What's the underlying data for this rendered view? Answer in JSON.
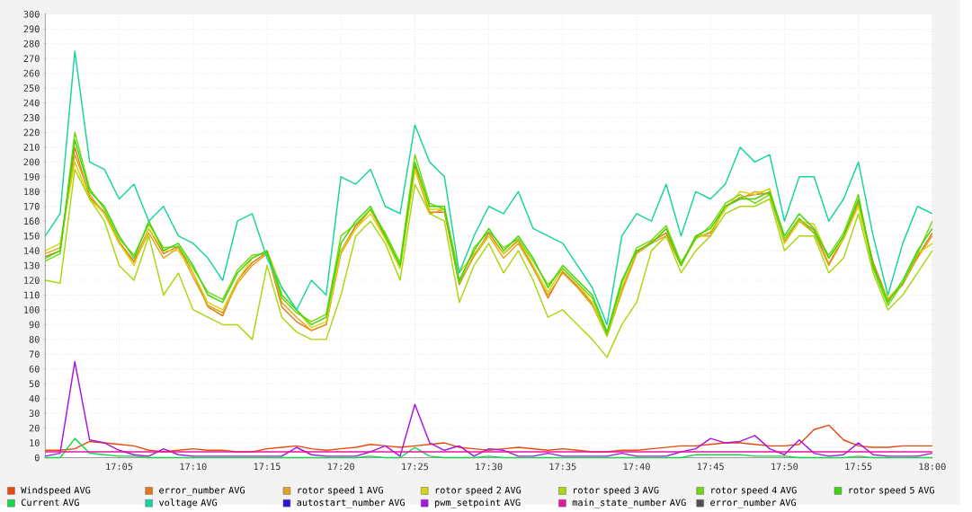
{
  "chart_data": {
    "type": "line",
    "line_style": "solid",
    "grid": true,
    "legend": "bottom",
    "xlim": [
      17.0,
      18.0
    ],
    "ylim": [
      0,
      300
    ],
    "xticks": [
      {
        "value": 17.0833,
        "label": "17:05"
      },
      {
        "value": 17.1667,
        "label": "17:10"
      },
      {
        "value": 17.25,
        "label": "17:15"
      },
      {
        "value": 17.3333,
        "label": "17:20"
      },
      {
        "value": 17.4167,
        "label": "17:25"
      },
      {
        "value": 17.5,
        "label": "17:30"
      },
      {
        "value": 17.5833,
        "label": "17:35"
      },
      {
        "value": 17.6667,
        "label": "17:40"
      },
      {
        "value": 17.75,
        "label": "17:45"
      },
      {
        "value": 17.8333,
        "label": "17:50"
      },
      {
        "value": 17.9167,
        "label": "17:55"
      },
      {
        "value": 18.0,
        "label": "18:00"
      }
    ],
    "yticks": [
      0,
      10,
      20,
      30,
      40,
      50,
      60,
      70,
      80,
      90,
      100,
      110,
      120,
      130,
      140,
      150,
      160,
      170,
      180,
      190,
      200,
      210,
      220,
      230,
      240,
      250,
      260,
      270,
      280,
      290,
      300
    ],
    "x": [
      17.0,
      17.0167,
      17.0333,
      17.05,
      17.0667,
      17.0833,
      17.1,
      17.1167,
      17.1333,
      17.15,
      17.1667,
      17.1833,
      17.2,
      17.2167,
      17.2333,
      17.25,
      17.2667,
      17.2833,
      17.3,
      17.3167,
      17.3333,
      17.35,
      17.3667,
      17.3833,
      17.4,
      17.4167,
      17.4333,
      17.45,
      17.4667,
      17.4833,
      17.5,
      17.5167,
      17.5333,
      17.55,
      17.5667,
      17.5833,
      17.6,
      17.6167,
      17.6333,
      17.65,
      17.6667,
      17.6833,
      17.7,
      17.7167,
      17.7333,
      17.75,
      17.7667,
      17.7833,
      17.8,
      17.8167,
      17.8333,
      17.85,
      17.8667,
      17.8833,
      17.9,
      17.9167,
      17.9333,
      17.95,
      17.9667,
      17.9833,
      18.0
    ],
    "series": [
      {
        "name": "Windspeed AVG",
        "color": "#e84a0c",
        "values": [
          5,
          5,
          6,
          11,
          10,
          9,
          8,
          5,
          4,
          5,
          6,
          5,
          5,
          4,
          4,
          6,
          7,
          8,
          6,
          5,
          6,
          7,
          9,
          8,
          7,
          8,
          9,
          10,
          7,
          6,
          5,
          6,
          7,
          6,
          5,
          6,
          5,
          4,
          4,
          5,
          5,
          6,
          7,
          8,
          8,
          9,
          10,
          10,
          9,
          8,
          8,
          9,
          19,
          22,
          12,
          8,
          7,
          7,
          8,
          8,
          8
        ]
      },
      {
        "name": "error_number AVG",
        "color": "#e0781a",
        "values": [
          136,
          140,
          210,
          176,
          166,
          146,
          133,
          155,
          138,
          143,
          125,
          102,
          96,
          120,
          132,
          139,
          102,
          92,
          86,
          90,
          140,
          157,
          168,
          149,
          129,
          198,
          166,
          166,
          117,
          137,
          152,
          138,
          147,
          129,
          108,
          126,
          116,
          104,
          84,
          114,
          139,
          146,
          152,
          131,
          149,
          152,
          170,
          176,
          178,
          179,
          146,
          161,
          154,
          131,
          149,
          173,
          132,
          107,
          117,
          136,
          152
        ]
      },
      {
        "name": "rotor speed 1 AVG",
        "color": "#e0a51c",
        "values": [
          138,
          142,
          205,
          178,
          165,
          145,
          132,
          152,
          135,
          142,
          122,
          103,
          98,
          118,
          130,
          138,
          105,
          95,
          86,
          90,
          138,
          155,
          168,
          150,
          128,
          195,
          165,
          168,
          118,
          136,
          150,
          135,
          145,
          128,
          110,
          125,
          115,
          103,
          82,
          112,
          138,
          145,
          150,
          130,
          150,
          150,
          170,
          175,
          180,
          178,
          145,
          160,
          152,
          130,
          148,
          172,
          130,
          106,
          118,
          135,
          150
        ]
      },
      {
        "name": "rotor speed 2 AVG",
        "color": "#d8d410",
        "values": [
          140,
          145,
          200,
          175,
          165,
          145,
          130,
          155,
          140,
          140,
          125,
          105,
          100,
          120,
          135,
          140,
          115,
          100,
          88,
          92,
          140,
          155,
          165,
          148,
          128,
          195,
          168,
          168,
          125,
          138,
          150,
          138,
          148,
          130,
          112,
          128,
          118,
          105,
          82,
          115,
          140,
          145,
          155,
          130,
          148,
          153,
          168,
          180,
          178,
          182,
          145,
          160,
          158,
          135,
          148,
          170,
          128,
          108,
          118,
          138,
          145
        ]
      },
      {
        "name": "rotor speed 3 AVG",
        "color": "#a8d80e",
        "values": [
          120,
          118,
          195,
          175,
          160,
          130,
          120,
          150,
          110,
          125,
          100,
          95,
          90,
          90,
          80,
          130,
          95,
          85,
          80,
          80,
          110,
          150,
          160,
          145,
          120,
          185,
          165,
          160,
          105,
          130,
          145,
          125,
          140,
          120,
          95,
          100,
          90,
          80,
          68,
          90,
          105,
          140,
          150,
          125,
          140,
          150,
          165,
          170,
          170,
          175,
          140,
          150,
          150,
          125,
          135,
          165,
          125,
          100,
          110,
          125,
          140
        ]
      },
      {
        "name": "rotor speed 4 AVG",
        "color": "#72d80e",
        "values": [
          133,
          138,
          220,
          182,
          168,
          148,
          137,
          158,
          142,
          143,
          128,
          112,
          107,
          127,
          137,
          138,
          108,
          98,
          92,
          97,
          150,
          158,
          168,
          152,
          132,
          205,
          172,
          168,
          118,
          142,
          153,
          142,
          148,
          133,
          117,
          128,
          118,
          108,
          83,
          118,
          142,
          147,
          157,
          132,
          148,
          157,
          172,
          178,
          172,
          178,
          148,
          162,
          152,
          137,
          152,
          178,
          128,
          103,
          118,
          138,
          160
        ]
      },
      {
        "name": "rotor speed 5 AVG",
        "color": "#3cd60c",
        "values": [
          135,
          140,
          215,
          180,
          170,
          150,
          135,
          160,
          140,
          145,
          130,
          110,
          105,
          125,
          135,
          140,
          110,
          100,
          90,
          95,
          145,
          160,
          170,
          150,
          130,
          200,
          170,
          170,
          120,
          140,
          155,
          140,
          150,
          135,
          115,
          130,
          120,
          110,
          85,
          120,
          140,
          145,
          155,
          130,
          150,
          155,
          170,
          175,
          175,
          180,
          150,
          165,
          155,
          135,
          150,
          175,
          130,
          105,
          120,
          140,
          155
        ]
      },
      {
        "name": "Current AVG",
        "color": "#14d84a",
        "values": [
          0,
          0,
          13,
          3,
          2,
          1,
          1,
          0,
          0,
          0,
          0,
          0,
          0,
          0,
          0,
          0,
          0,
          0,
          0,
          0,
          0,
          0,
          1,
          0,
          0,
          7,
          1,
          0,
          0,
          0,
          1,
          0,
          0,
          0,
          0,
          0,
          0,
          0,
          0,
          0,
          0,
          0,
          0,
          0,
          2,
          2,
          2,
          2,
          1,
          1,
          1,
          0,
          0,
          0,
          0,
          1,
          0,
          0,
          0,
          0,
          0
        ]
      },
      {
        "name": "voltage AVG",
        "color": "#14d4a0",
        "values": [
          150,
          165,
          275,
          200,
          195,
          175,
          185,
          160,
          170,
          150,
          145,
          135,
          120,
          160,
          165,
          135,
          115,
          100,
          120,
          110,
          190,
          185,
          195,
          170,
          165,
          225,
          200,
          190,
          125,
          150,
          170,
          165,
          180,
          155,
          150,
          145,
          130,
          115,
          90,
          150,
          165,
          160,
          185,
          150,
          180,
          175,
          185,
          210,
          200,
          205,
          160,
          190,
          190,
          160,
          175,
          200,
          150,
          110,
          145,
          170,
          165
        ]
      },
      {
        "name": "autostart_number AVG",
        "color": "#2814d8",
        "values": [
          null,
          null,
          null,
          null,
          null,
          null,
          null,
          null,
          null,
          null,
          null,
          null,
          null,
          null,
          null,
          null,
          null,
          null,
          null,
          null,
          null,
          null,
          null,
          null,
          null,
          null,
          null,
          null,
          null,
          null,
          null,
          null,
          null,
          null,
          null,
          null,
          null,
          null,
          null,
          null,
          null,
          null,
          null,
          null,
          null,
          null,
          null,
          null,
          null,
          null,
          null,
          null,
          null,
          null,
          null,
          null,
          null,
          null,
          null,
          null,
          null
        ]
      },
      {
        "name": "pwm_setpoint AVG",
        "color": "#a814e0",
        "values": [
          1,
          3,
          65,
          12,
          10,
          5,
          2,
          1,
          6,
          2,
          1,
          1,
          1,
          1,
          1,
          1,
          1,
          7,
          2,
          1,
          1,
          1,
          4,
          8,
          1,
          36,
          10,
          5,
          8,
          1,
          6,
          5,
          1,
          1,
          3,
          1,
          1,
          1,
          1,
          3,
          1,
          1,
          1,
          4,
          6,
          13,
          10,
          11,
          15,
          6,
          2,
          12,
          3,
          1,
          2,
          10,
          2,
          1,
          1,
          1,
          3
        ]
      },
      {
        "name": "main_state_number AVG",
        "color": "#e414a0",
        "values": [
          4,
          4,
          4,
          4,
          4,
          4,
          4,
          4,
          4,
          4,
          4,
          4,
          4,
          4,
          4,
          4,
          4,
          4,
          4,
          4,
          4,
          4,
          4,
          4,
          4,
          4,
          4,
          4,
          4,
          4,
          4,
          4,
          4,
          4,
          4,
          4,
          4,
          4,
          4,
          4,
          4,
          4,
          4,
          4,
          4,
          4,
          4,
          4,
          4,
          4,
          4,
          4,
          4,
          4,
          4,
          4,
          4,
          4,
          4,
          4,
          4
        ]
      },
      {
        "name": "error_number AVG",
        "color": "#505050",
        "values": [
          null,
          null,
          null,
          null,
          null,
          null,
          null,
          null,
          null,
          null,
          null,
          null,
          null,
          null,
          null,
          null,
          null,
          null,
          null,
          null,
          null,
          null,
          null,
          null,
          null,
          null,
          null,
          null,
          null,
          null,
          null,
          null,
          null,
          null,
          null,
          null,
          null,
          null,
          null,
          null,
          null,
          null,
          null,
          null,
          null,
          null,
          null,
          null,
          null,
          null,
          null,
          null,
          null,
          null,
          null,
          null,
          null,
          null,
          null,
          null,
          null
        ]
      }
    ]
  }
}
